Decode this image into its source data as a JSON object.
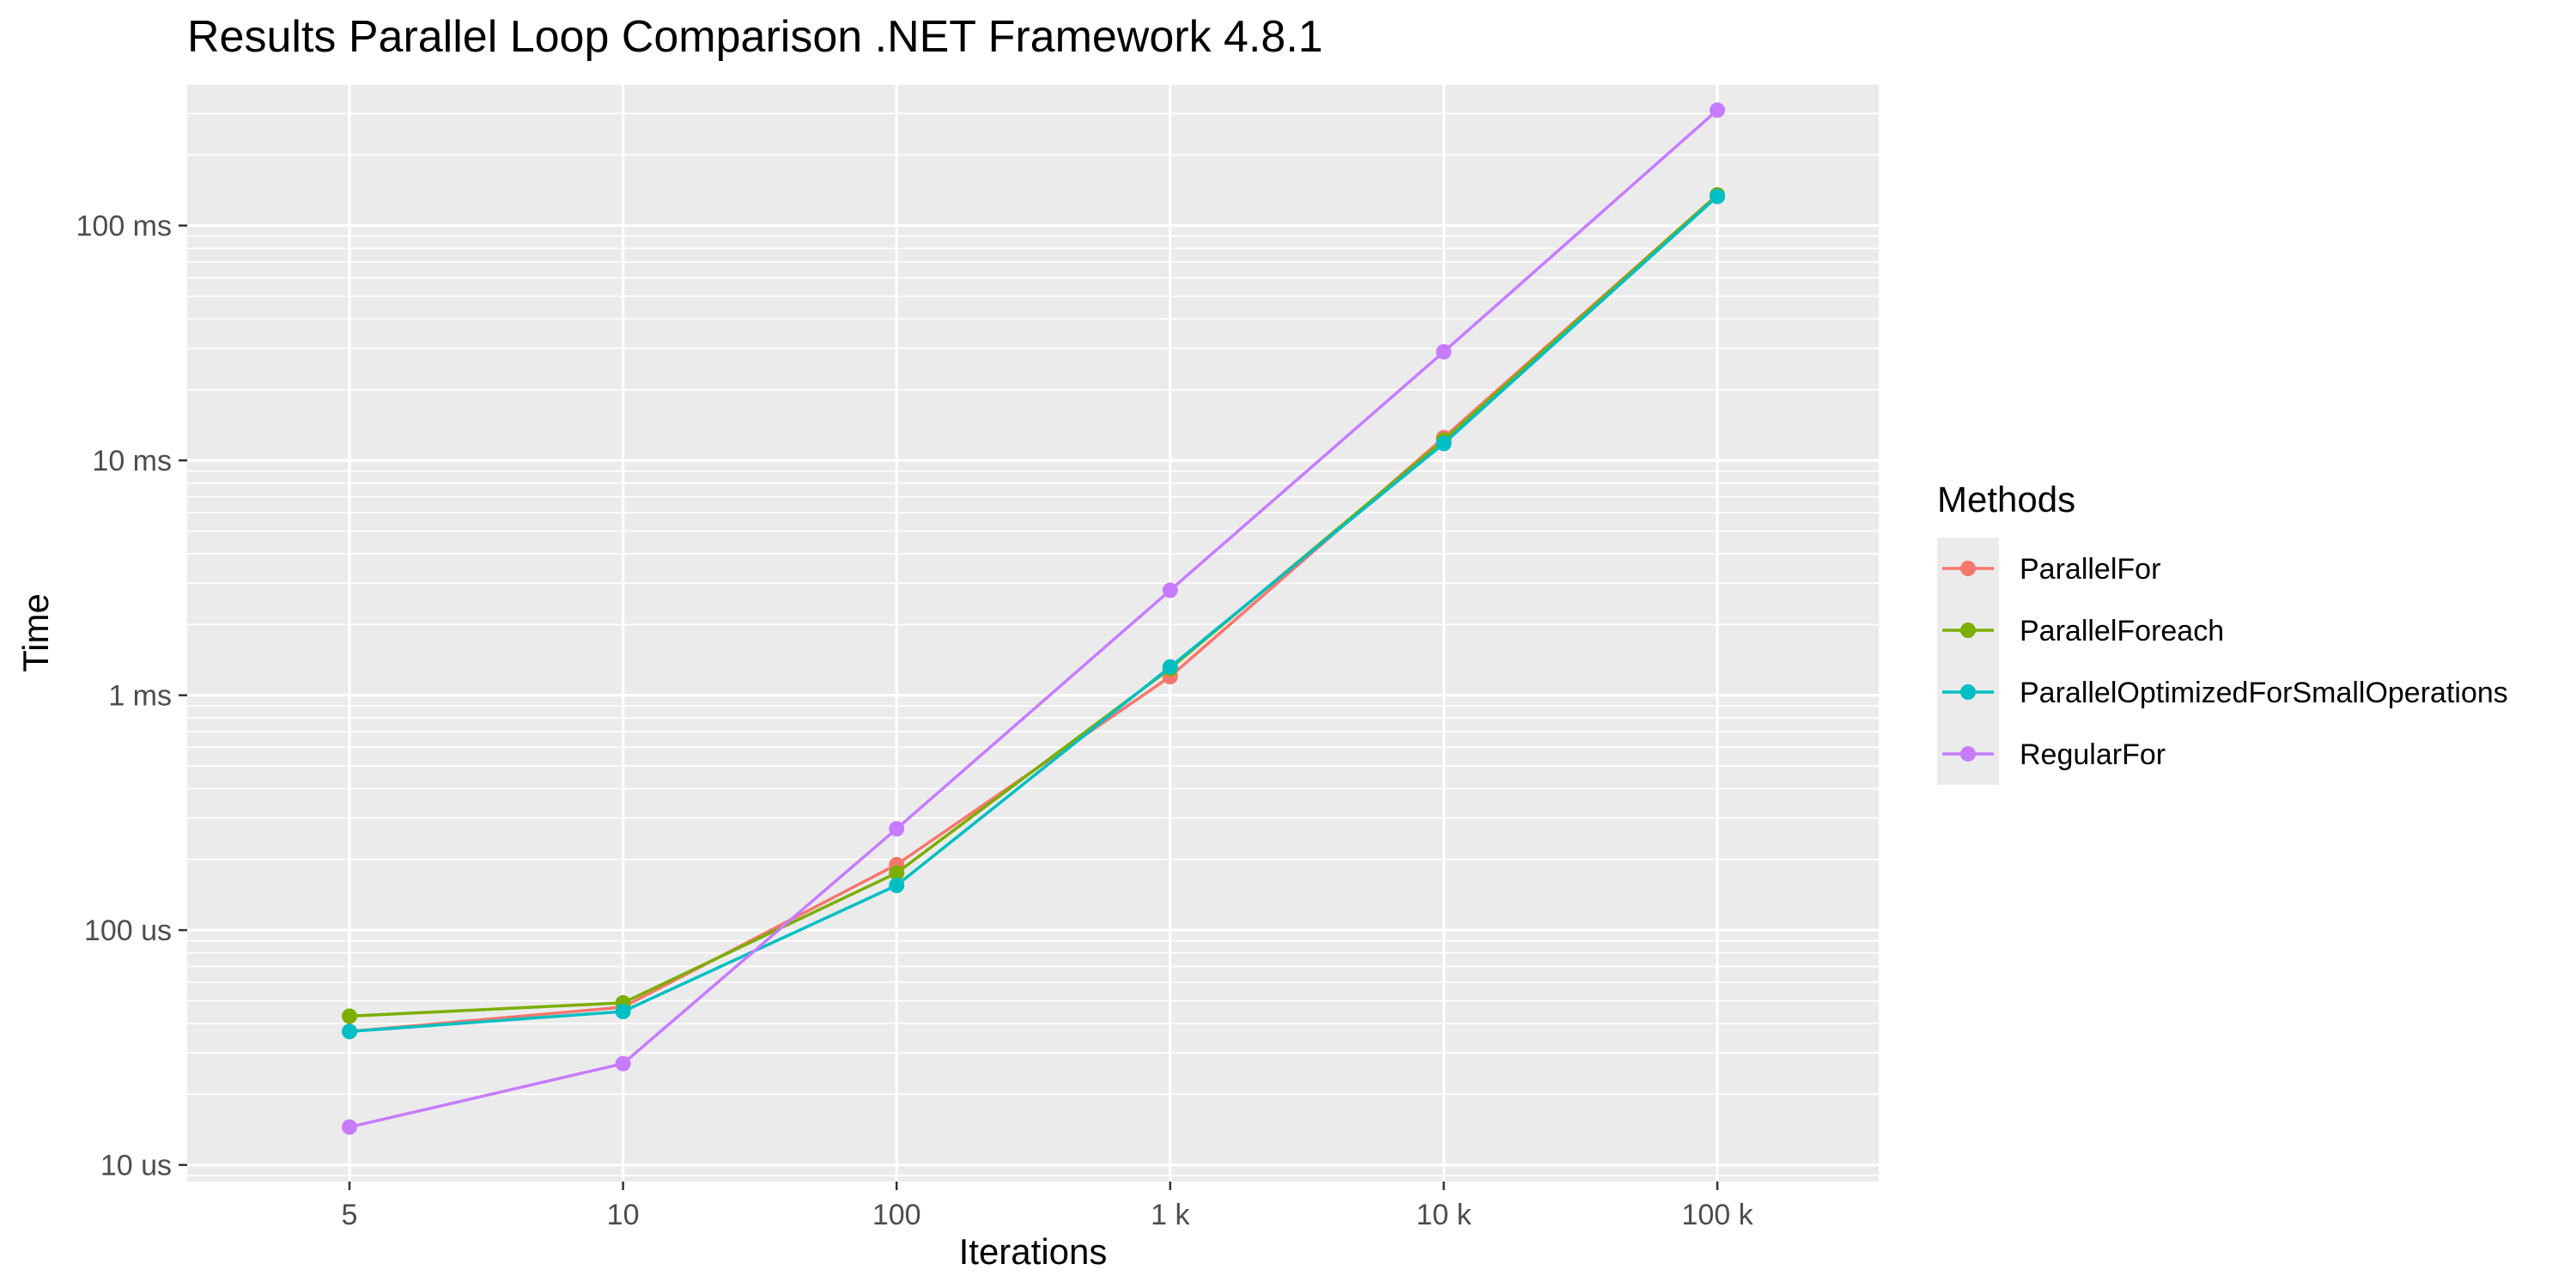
{
  "chart_data": {
    "type": "line",
    "title": "Results Parallel Loop Comparison  .NET Framework 4.8.1",
    "xlabel": "Iterations",
    "ylabel": "Time",
    "x": [
      5,
      10,
      100,
      1000,
      10000,
      100000
    ],
    "x_tick_labels": [
      "5",
      "10",
      "100",
      "1 k",
      "10 k",
      "100 k"
    ],
    "y_scale": "log",
    "y_unit": "ms",
    "ylim": [
      0.0085,
      400
    ],
    "y_ticks": [
      0.01,
      0.1,
      1,
      10,
      100
    ],
    "y_tick_labels": [
      "10 us",
      "100 us",
      "1 ms",
      "10 ms",
      "100 ms"
    ],
    "grid": true,
    "legend": {
      "title": "Methods",
      "placement": "right"
    },
    "series": [
      {
        "name": "ParallelFor",
        "color": "#F8766D",
        "values": [
          0.037,
          0.047,
          0.19,
          1.2,
          12.5,
          135
        ]
      },
      {
        "name": "ParallelForeach",
        "color": "#7CAE00",
        "values": [
          0.043,
          0.049,
          0.175,
          1.3,
          12.2,
          135
        ]
      },
      {
        "name": "ParallelOptimizedForSmallOperations",
        "color": "#00BFC4",
        "values": [
          0.037,
          0.045,
          0.155,
          1.32,
          11.8,
          133
        ]
      },
      {
        "name": "RegularFor",
        "color": "#C77CFF",
        "values": [
          0.0145,
          0.027,
          0.27,
          2.8,
          29,
          310
        ]
      }
    ]
  }
}
